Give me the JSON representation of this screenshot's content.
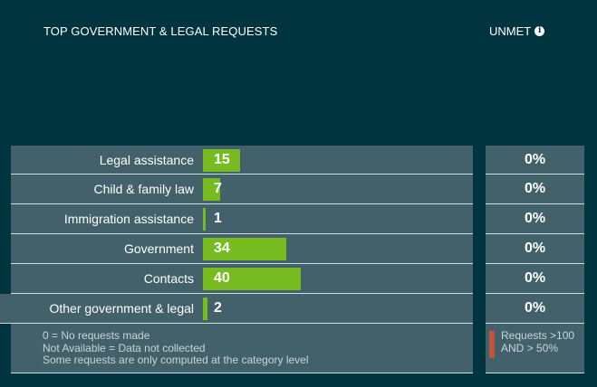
{
  "header": {
    "title": "TOP GOVERNMENT & LEGAL REQUESTS",
    "unmet_label": "UNMET",
    "info_icon": "info-icon"
  },
  "rows": [
    {
      "label": "Legal assistance",
      "value": "15",
      "count": 15,
      "unmet": "0%"
    },
    {
      "label": "Child & family law",
      "value": "7",
      "count": 7,
      "unmet": "0%"
    },
    {
      "label": "Immigration assistance",
      "value": "1",
      "count": 1,
      "unmet": "0%"
    },
    {
      "label": "Government",
      "value": "34",
      "count": 34,
      "unmet": "0%"
    },
    {
      "label": "Contacts",
      "value": "40",
      "count": 40,
      "unmet": "0%"
    },
    {
      "label": "Other government & legal",
      "value": "2",
      "count": 2,
      "unmet": "0%"
    }
  ],
  "footer": {
    "notes": [
      "0 = No requests made",
      "Not Available = Data not collected",
      "Some requests are only computed at the category level"
    ],
    "legend": {
      "line1": "Requests >100",
      "line2": "AND > 50%",
      "color": "#c0533a"
    }
  },
  "colors": {
    "background": "#003540",
    "row_background": "#43616a",
    "bar": "#76bc21"
  }
}
